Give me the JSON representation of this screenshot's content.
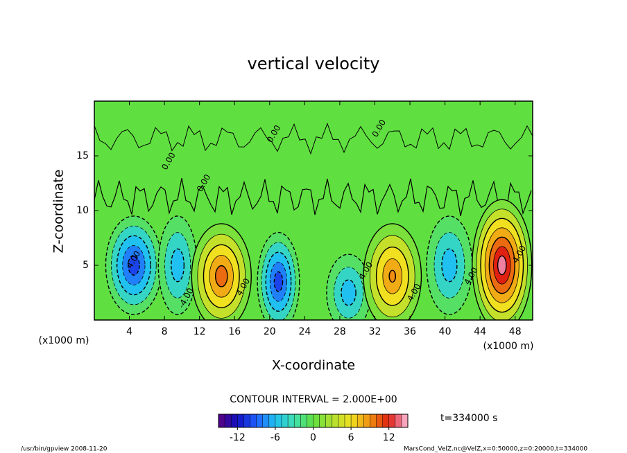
{
  "chart_data": {
    "type": "contour",
    "title": "vertical velocity",
    "x_label": "X-coordinate",
    "y_label": "Z-coordinate",
    "x_unit": "(x1000 m)",
    "y_unit": "(x1000 m)",
    "xlim": [
      0,
      50
    ],
    "ylim": [
      0,
      20
    ],
    "xticks": [
      4,
      8,
      12,
      16,
      20,
      24,
      28,
      32,
      36,
      40,
      44,
      48
    ],
    "yticks": [
      5,
      10,
      15
    ],
    "contour_interval_text": "CONTOUR INTERVAL = 2.000E+00",
    "contour_interval": 2,
    "time_text": "t=334000 s",
    "extrema": [
      {
        "x": 4.5,
        "z": 5,
        "value": -10,
        "rx": 3.2,
        "rz": 4.5
      },
      {
        "x": 9.5,
        "z": 5,
        "value": -6,
        "rx": 2.2,
        "rz": 4.5
      },
      {
        "x": 14.5,
        "z": 4,
        "value": 10,
        "rx": 3.4,
        "rz": 4.8
      },
      {
        "x": 21,
        "z": 3.5,
        "value": -10,
        "rx": 2.4,
        "rz": 4.5
      },
      {
        "x": 29,
        "z": 2.5,
        "value": -6,
        "rx": 2.5,
        "rz": 3.5
      },
      {
        "x": 34,
        "z": 4,
        "value": 9,
        "rx": 3.3,
        "rz": 4.8
      },
      {
        "x": 40.5,
        "z": 5,
        "value": -6,
        "rx": 2.6,
        "rz": 4.5
      },
      {
        "x": 46.5,
        "z": 5,
        "value": 14,
        "rx": 3.4,
        "rz": 6
      }
    ],
    "contour_labels": [
      {
        "text": "0.00",
        "x": 8.5,
        "z": 14.5
      },
      {
        "text": "0.00",
        "x": 12.5,
        "z": 12.5
      },
      {
        "text": "0.00",
        "x": 20.5,
        "z": 17
      },
      {
        "text": "0.00",
        "x": 32.5,
        "z": 17.5
      },
      {
        "text": "4.00",
        "x": 4.5,
        "z": 5.5
      },
      {
        "text": "-4.00",
        "x": 10.5,
        "z": 2
      },
      {
        "text": "4.00",
        "x": 17,
        "z": 3
      },
      {
        "text": "4.00",
        "x": 31,
        "z": 4.5
      },
      {
        "text": "4.00",
        "x": 36.5,
        "z": 2.5
      },
      {
        "text": "4.00",
        "x": 43,
        "z": 4
      },
      {
        "text": "4.00",
        "x": 48.5,
        "z": 6
      }
    ],
    "colorbar": {
      "lim": [
        -15,
        15
      ],
      "ticks": [
        -12,
        -6,
        0,
        6,
        12
      ]
    },
    "footer_left": "/usr/bin/gpview   2008-11-20",
    "footer_right": "MarsCond_VelZ.nc@VelZ,x=0:50000,z=0:20000,t=334000"
  }
}
